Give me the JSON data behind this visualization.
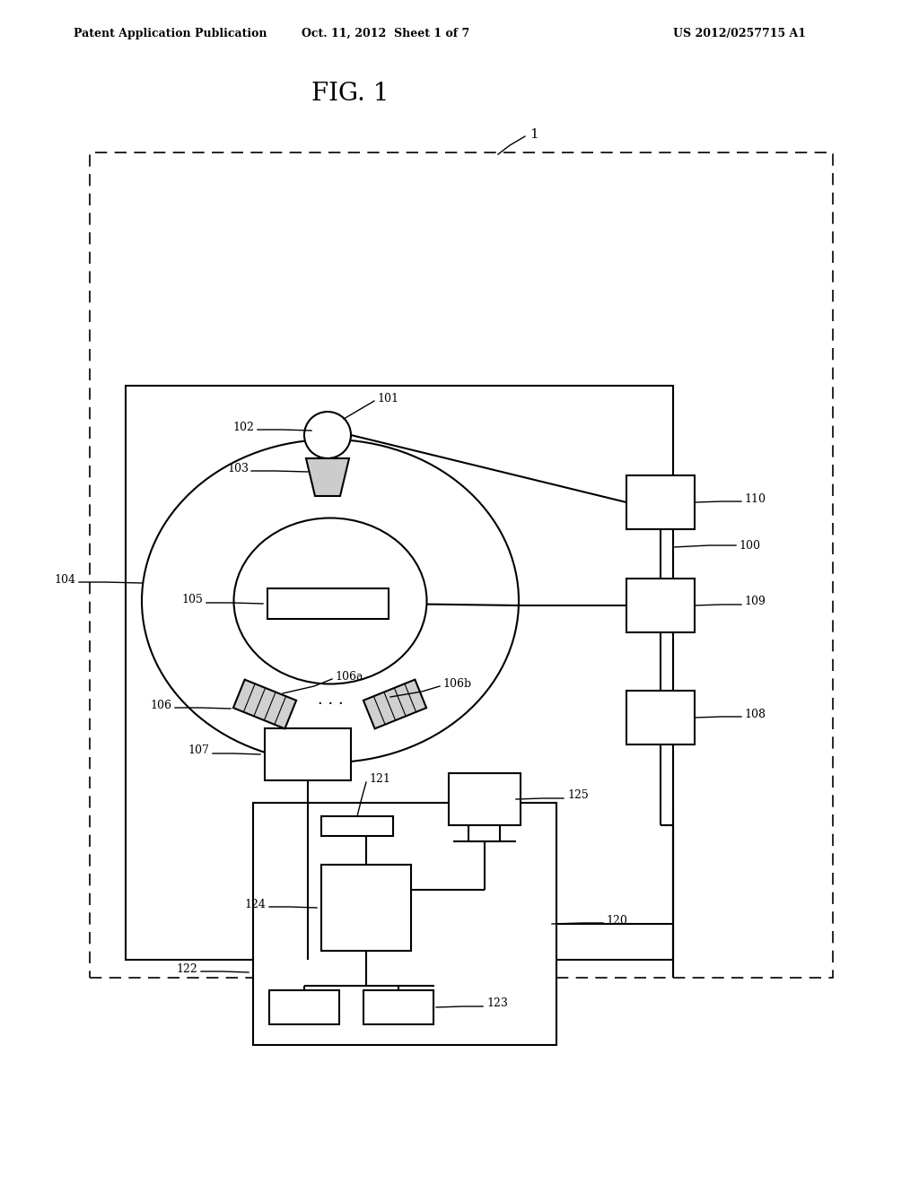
{
  "bg_color": "#ffffff",
  "fig_title": "FIG. 1",
  "header_left": "Patent Application Publication",
  "header_mid": "Oct. 11, 2012  Sheet 1 of 7",
  "header_right": "US 2012/0257715 A1",
  "lw_main": 1.5,
  "lw_leader": 1.0,
  "fs_label": 9,
  "fs_title": 20,
  "fs_header": 9
}
